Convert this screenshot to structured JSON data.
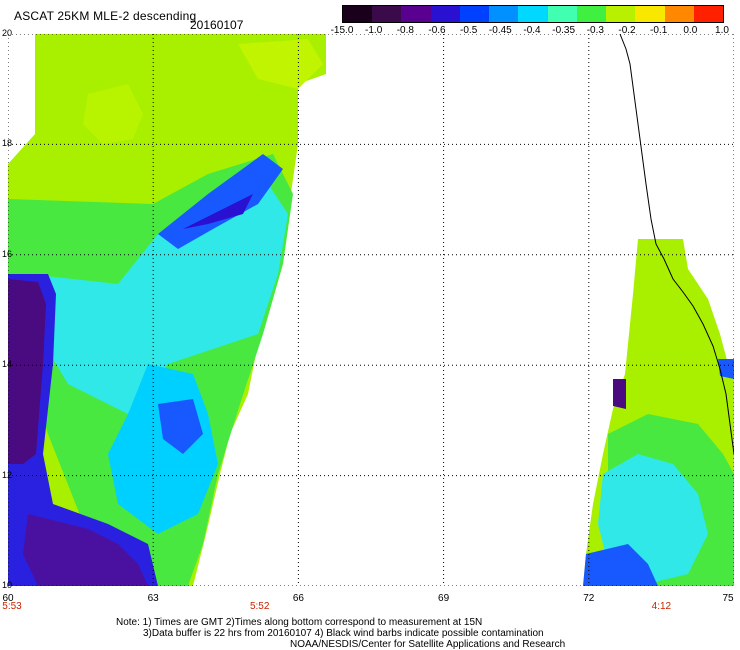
{
  "header": {
    "title": "ASCAT 25KM MLE-2 descending",
    "date": "20160107"
  },
  "colorbar": {
    "labels": [
      "-15.0",
      "-1.0",
      "-0.8",
      "-0.6",
      "-0.5",
      "-0.45",
      "-0.4",
      "-0.35",
      "-0.3",
      "-0.2",
      "-0.1",
      "0.0",
      "1.0"
    ],
    "colors": [
      "#1a001a",
      "#3a0a4a",
      "#5a0090",
      "#2a10d0",
      "#0040ff",
      "#0090ff",
      "#00d8ff",
      "#40ffb0",
      "#40f040",
      "#b8f000",
      "#f8e800",
      "#ff8800",
      "#ff2000"
    ]
  },
  "map": {
    "lat_labels": [
      "20",
      "18",
      "16",
      "14",
      "12",
      "10"
    ],
    "lon_labels": [
      "60",
      "63",
      "66",
      "69",
      "72",
      "75"
    ],
    "time_labels": [
      {
        "text": "5:53",
        "lon": 60
      },
      {
        "text": "5:52",
        "lon": 65.2
      },
      {
        "text": "4:12",
        "lon": 73.5
      }
    ]
  },
  "notes": {
    "line1": "Note: 1) Times are GMT 2)Times along bottom correspond to measurement at 15N",
    "line2": "3)Data buffer is 22 hrs from 20160107 4) Black wind barbs indicate possible contamination",
    "line3": "NOAA/NESDIS/Center for Satellite Applications and Research"
  }
}
